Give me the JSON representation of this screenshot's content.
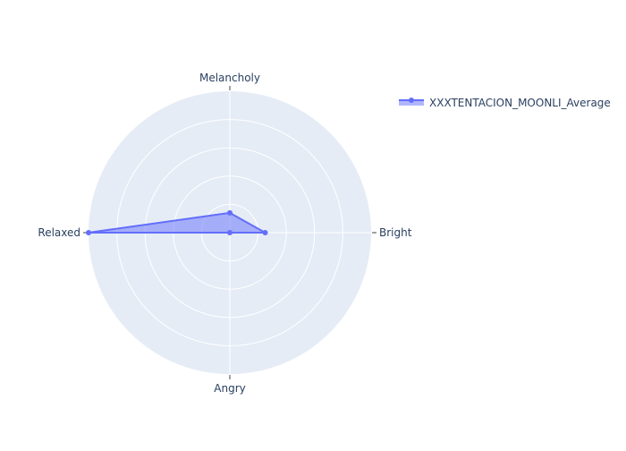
{
  "chart_data": {
    "type": "radar",
    "axes": [
      "Bright",
      "Melancholy",
      "Relaxed",
      "Angry"
    ],
    "radial_range": [
      0,
      1
    ],
    "radial_ticks": [
      0.2,
      0.4,
      0.6,
      0.8,
      1.0
    ],
    "series": [
      {
        "name": "XXXTENTACION_MOONLI_Average",
        "values": [
          0.25,
          0.14,
          1.0,
          0.0
        ],
        "color": "#636efa",
        "fill": "toself"
      }
    ],
    "legend_position": "top-right",
    "background_color": "#e5ecf6",
    "grid_color": "#ffffff"
  }
}
